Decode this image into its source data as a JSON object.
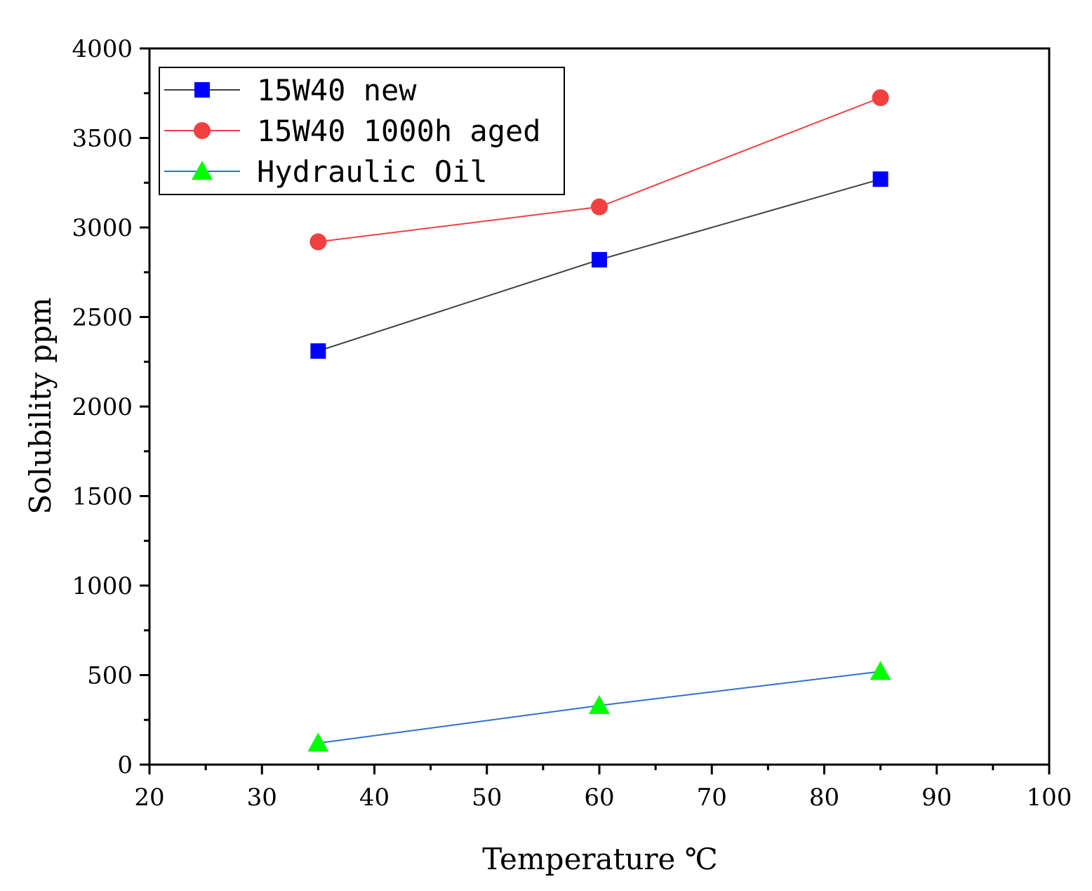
{
  "chart_data": {
    "type": "line",
    "title": "",
    "xlabel": "Temperature ℃",
    "ylabel": "Solubility ppm",
    "xlim": [
      20,
      100
    ],
    "ylim": [
      0,
      4000
    ],
    "x_ticks": [
      20,
      30,
      40,
      50,
      60,
      70,
      80,
      90,
      100
    ],
    "y_ticks": [
      0,
      500,
      1000,
      1500,
      2000,
      2500,
      3000,
      3500,
      4000
    ],
    "grid": false,
    "legend_position": "top-left",
    "series": [
      {
        "name": "15W40 new",
        "marker": "square",
        "marker_color": "#0000ff",
        "line_color": "#404040",
        "x": [
          35,
          60,
          85
        ],
        "y": [
          2310,
          2820,
          3270
        ]
      },
      {
        "name": "15W40 1000h aged",
        "marker": "circle",
        "marker_color": "#f04040",
        "line_color": "#f04040",
        "x": [
          35,
          60,
          85
        ],
        "y": [
          2920,
          3115,
          3725
        ]
      },
      {
        "name": "Hydraulic Oil",
        "marker": "triangle",
        "marker_color": "#00ff00",
        "line_color": "#3070d0",
        "x": [
          35,
          60,
          85
        ],
        "y": [
          120,
          330,
          520
        ]
      }
    ]
  }
}
